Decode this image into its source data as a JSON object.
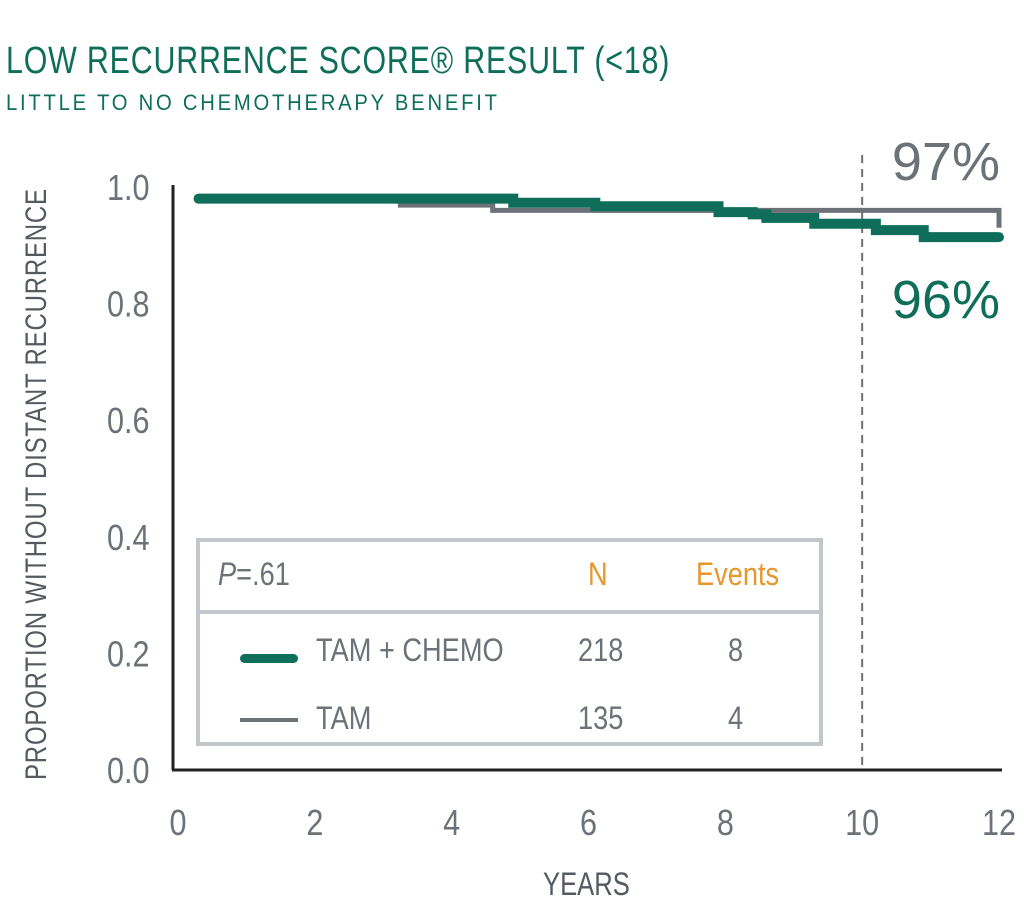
{
  "title": "LOW RECURRENCE SCORE® RESULT (<18)",
  "subtitle": "LITTLE TO NO CHEMOTHERAPY BENEFIT",
  "colors": {
    "chemo": "#0e6e5a",
    "tam": "#6d7178",
    "accent": "#e8962e"
  },
  "chart_data": {
    "type": "line",
    "title": "LOW RECURRENCE SCORE® RESULT (<18)",
    "xlabel": "YEARS",
    "ylabel": "PROPORTION WITHOUT DISTANT RECURRENCE",
    "xlim": [
      0,
      12
    ],
    "ylim": [
      0,
      1
    ],
    "xticks": [
      "0",
      "2",
      "4",
      "6",
      "8",
      "10",
      "12"
    ],
    "yticks": [
      "0.0",
      "0.2",
      "0.4",
      "0.6",
      "0.8",
      "1.0"
    ],
    "reference_line_x": 10,
    "series": [
      {
        "name": "TAM + CHEMO",
        "step": true,
        "x": [
          0.3,
          4.9,
          6.1,
          7.9,
          8.4,
          8.6,
          9.3,
          10.2,
          10.9,
          12
        ],
        "y": [
          0.98,
          0.973,
          0.967,
          0.957,
          0.953,
          0.947,
          0.937,
          0.926,
          0.914,
          0.914
        ]
      },
      {
        "name": "TAM",
        "step": true,
        "x": [
          0.3,
          3.25,
          4.6,
          12,
          12
        ],
        "y": [
          0.98,
          0.969,
          0.96,
          0.955,
          0.93
        ]
      }
    ],
    "annotations": {
      "tam": "97%",
      "chemo": "96%"
    },
    "legend": {
      "p_label": "P",
      "p_value": "=.61",
      "n_header": "N",
      "events_header": "Events",
      "rows": [
        {
          "name": "TAM + CHEMO",
          "n": "218",
          "events": "8"
        },
        {
          "name": "TAM",
          "n": "135",
          "events": "4"
        }
      ]
    }
  }
}
